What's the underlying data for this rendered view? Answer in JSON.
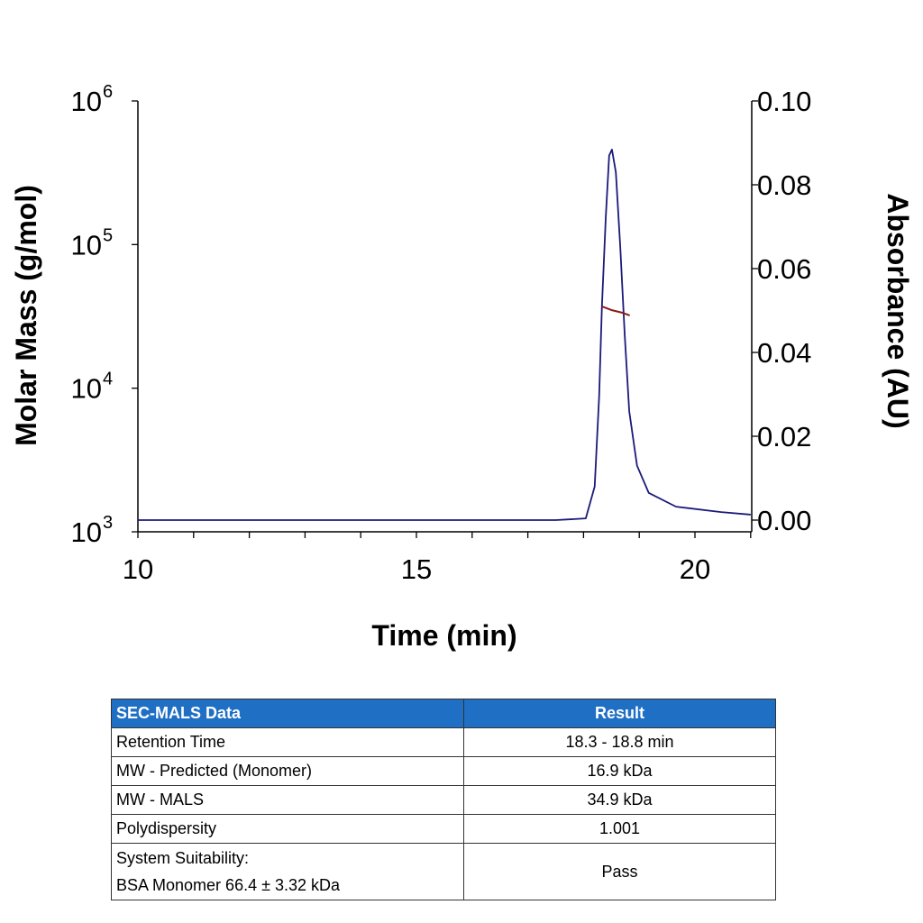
{
  "chart_data": {
    "type": "line",
    "xlabel": "Time (min)",
    "ylabel_left": "Molar Mass (g/mol)",
    "ylabel_right": "Absorbance (AU)",
    "xlim": [
      10,
      21
    ],
    "x_ticks": [
      "10",
      "15",
      "20"
    ],
    "y_left_scale": "log",
    "y_left_lim": [
      1000,
      1000000
    ],
    "y_left_ticks": [
      {
        "base": "10",
        "exp": "3"
      },
      {
        "base": "10",
        "exp": "4"
      },
      {
        "base": "10",
        "exp": "5"
      },
      {
        "base": "10",
        "exp": "6"
      }
    ],
    "y_right_lim": [
      0,
      0.1
    ],
    "y_right_ticks": [
      "0.00",
      "0.02",
      "0.04",
      "0.06",
      "0.08",
      "0.10"
    ],
    "grid": false,
    "series": [
      {
        "axis": "right",
        "color": "#1a1a7a",
        "x": [
          10,
          17.5,
          18.04,
          18.2,
          18.28,
          18.33,
          18.4,
          18.46,
          18.51,
          18.58,
          18.66,
          18.74,
          18.82,
          18.96,
          19.17,
          19.66,
          20.47,
          21.0
        ],
        "y": [
          0.0,
          0.0,
          0.0004,
          0.008,
          0.0295,
          0.051,
          0.0725,
          0.087,
          0.0884,
          0.083,
          0.065,
          0.044,
          0.026,
          0.013,
          0.0065,
          0.0032,
          0.0019,
          0.0013
        ]
      },
      {
        "axis": "left",
        "color": "#8b1a1a",
        "x": [
          18.33,
          18.5,
          18.7,
          18.83
        ],
        "y": [
          37100,
          35000,
          33500,
          32100
        ]
      }
    ]
  },
  "table": {
    "headers": [
      "SEC-MALS Data",
      "Result"
    ],
    "rows": [
      {
        "label": "Retention Time",
        "value": "18.3 - 18.8 min"
      },
      {
        "label": "MW - Predicted (Monomer)",
        "value": "16.9 kDa"
      },
      {
        "label": "MW - MALS",
        "value": "34.9 kDa"
      },
      {
        "label": "Polydispersity",
        "value": "1.001"
      },
      {
        "label": "System Suitability:",
        "label2": "BSA Monomer 66.4 ± 3.32 kDa",
        "value": "Pass"
      }
    ],
    "header_color": "#1f6fc5"
  }
}
